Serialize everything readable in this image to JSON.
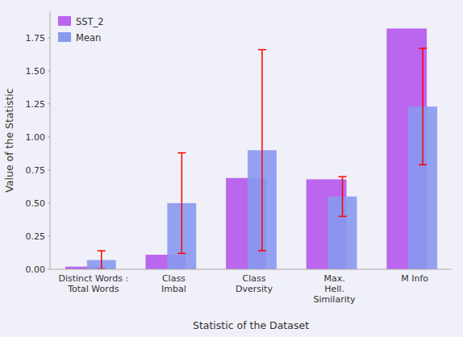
{
  "chart_data": {
    "type": "bar",
    "categories": [
      "Distinct Words :\nTotal Words",
      "Class\nImbal",
      "Class\nDversity",
      "Max.\nHell.\nSimilarity",
      "M Info"
    ],
    "series": [
      {
        "name": "SST_2",
        "color": "#bb66ee",
        "values": [
          0.02,
          0.11,
          0.69,
          0.68,
          1.82
        ]
      },
      {
        "name": "Mean",
        "color": "#8899ee",
        "values": [
          0.07,
          0.5,
          0.9,
          0.55,
          1.23
        ],
        "errors": [
          0.07,
          0.38,
          0.76,
          0.15,
          0.44
        ]
      }
    ],
    "xlabel": "Statistic of the Dataset",
    "ylabel": "Value of the Statistic",
    "ylim": [
      0,
      1.95
    ],
    "yticks": [
      {
        "value": 0,
        "label": "0.00"
      },
      0.25,
      {
        "value": 0.5,
        "label": "0.50"
      },
      0.75,
      {
        "value": 1,
        "label": "1.00"
      },
      1.25,
      {
        "value": 1.5,
        "label": "1.50"
      },
      1.75
    ],
    "grid": false,
    "legend": "upper left"
  }
}
